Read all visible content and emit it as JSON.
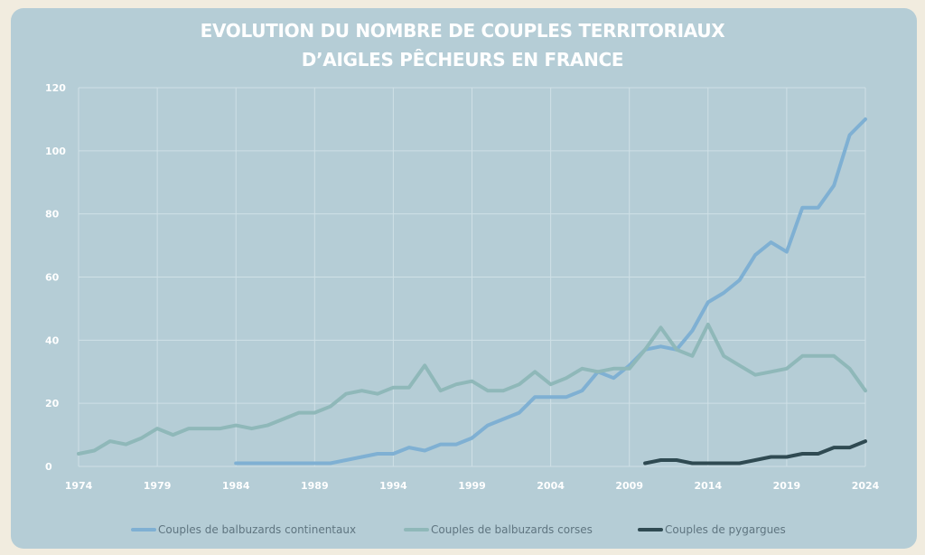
{
  "chart_data": {
    "type": "line",
    "title_line1": "EVOLUTION DU NOMBRE DE COUPLES TERRITORIAUX",
    "title_line2": "D’AIGLES PÊCHEURS EN FRANCE",
    "xlabel": "",
    "ylabel": "",
    "xlim": [
      1974,
      2024
    ],
    "ylim": [
      0,
      120
    ],
    "grid": true,
    "x_ticks": [
      1974,
      1979,
      1984,
      1989,
      1994,
      1999,
      2004,
      2009,
      2014,
      2019,
      2024
    ],
    "y_ticks": [
      0,
      20,
      40,
      60,
      80,
      100,
      120
    ],
    "legend_position": "bottom",
    "series": [
      {
        "name": "Couples de balbuzards continentaux",
        "color": "#7fb0d3",
        "x": [
          1984,
          1985,
          1986,
          1987,
          1988,
          1989,
          1990,
          1991,
          1992,
          1993,
          1994,
          1995,
          1996,
          1997,
          1998,
          1999,
          2000,
          2001,
          2002,
          2003,
          2004,
          2005,
          2006,
          2007,
          2008,
          2009,
          2010,
          2011,
          2012,
          2013,
          2014,
          2015,
          2016,
          2017,
          2018,
          2019,
          2020,
          2021,
          2022,
          2023,
          2024
        ],
        "values": [
          1,
          1,
          1,
          1,
          1,
          1,
          1,
          2,
          3,
          4,
          4,
          6,
          5,
          7,
          7,
          9,
          13,
          15,
          17,
          22,
          22,
          22,
          24,
          30,
          28,
          32,
          37,
          38,
          37,
          43,
          52,
          55,
          59,
          67,
          71,
          68,
          82,
          82,
          89,
          105,
          110
        ]
      },
      {
        "name": "Couples de balbuzards corses",
        "color": "#8fb8b9",
        "x": [
          1974,
          1975,
          1976,
          1977,
          1978,
          1979,
          1980,
          1981,
          1982,
          1983,
          1984,
          1985,
          1986,
          1987,
          1988,
          1989,
          1990,
          1991,
          1992,
          1993,
          1994,
          1995,
          1996,
          1997,
          1998,
          1999,
          2000,
          2001,
          2002,
          2003,
          2004,
          2005,
          2006,
          2007,
          2008,
          2009,
          2010,
          2011,
          2012,
          2013,
          2014,
          2015,
          2016,
          2017,
          2018,
          2019,
          2020,
          2021,
          2022,
          2023,
          2024
        ],
        "values": [
          4,
          5,
          8,
          7,
          9,
          12,
          10,
          12,
          12,
          12,
          13,
          12,
          13,
          15,
          17,
          17,
          19,
          23,
          24,
          23,
          25,
          25,
          32,
          24,
          26,
          27,
          24,
          24,
          26,
          30,
          26,
          28,
          31,
          30,
          31,
          31,
          37,
          44,
          37,
          35,
          45,
          35,
          32,
          29,
          30,
          31,
          35,
          35,
          35,
          31,
          24
        ]
      },
      {
        "name": "Couples de pygargues",
        "color": "#2f4a52",
        "x": [
          2010,
          2011,
          2012,
          2013,
          2014,
          2015,
          2016,
          2017,
          2018,
          2019,
          2020,
          2021,
          2022,
          2023,
          2024
        ],
        "values": [
          1,
          2,
          2,
          1,
          1,
          1,
          1,
          2,
          3,
          3,
          4,
          4,
          6,
          6,
          8
        ]
      }
    ]
  }
}
